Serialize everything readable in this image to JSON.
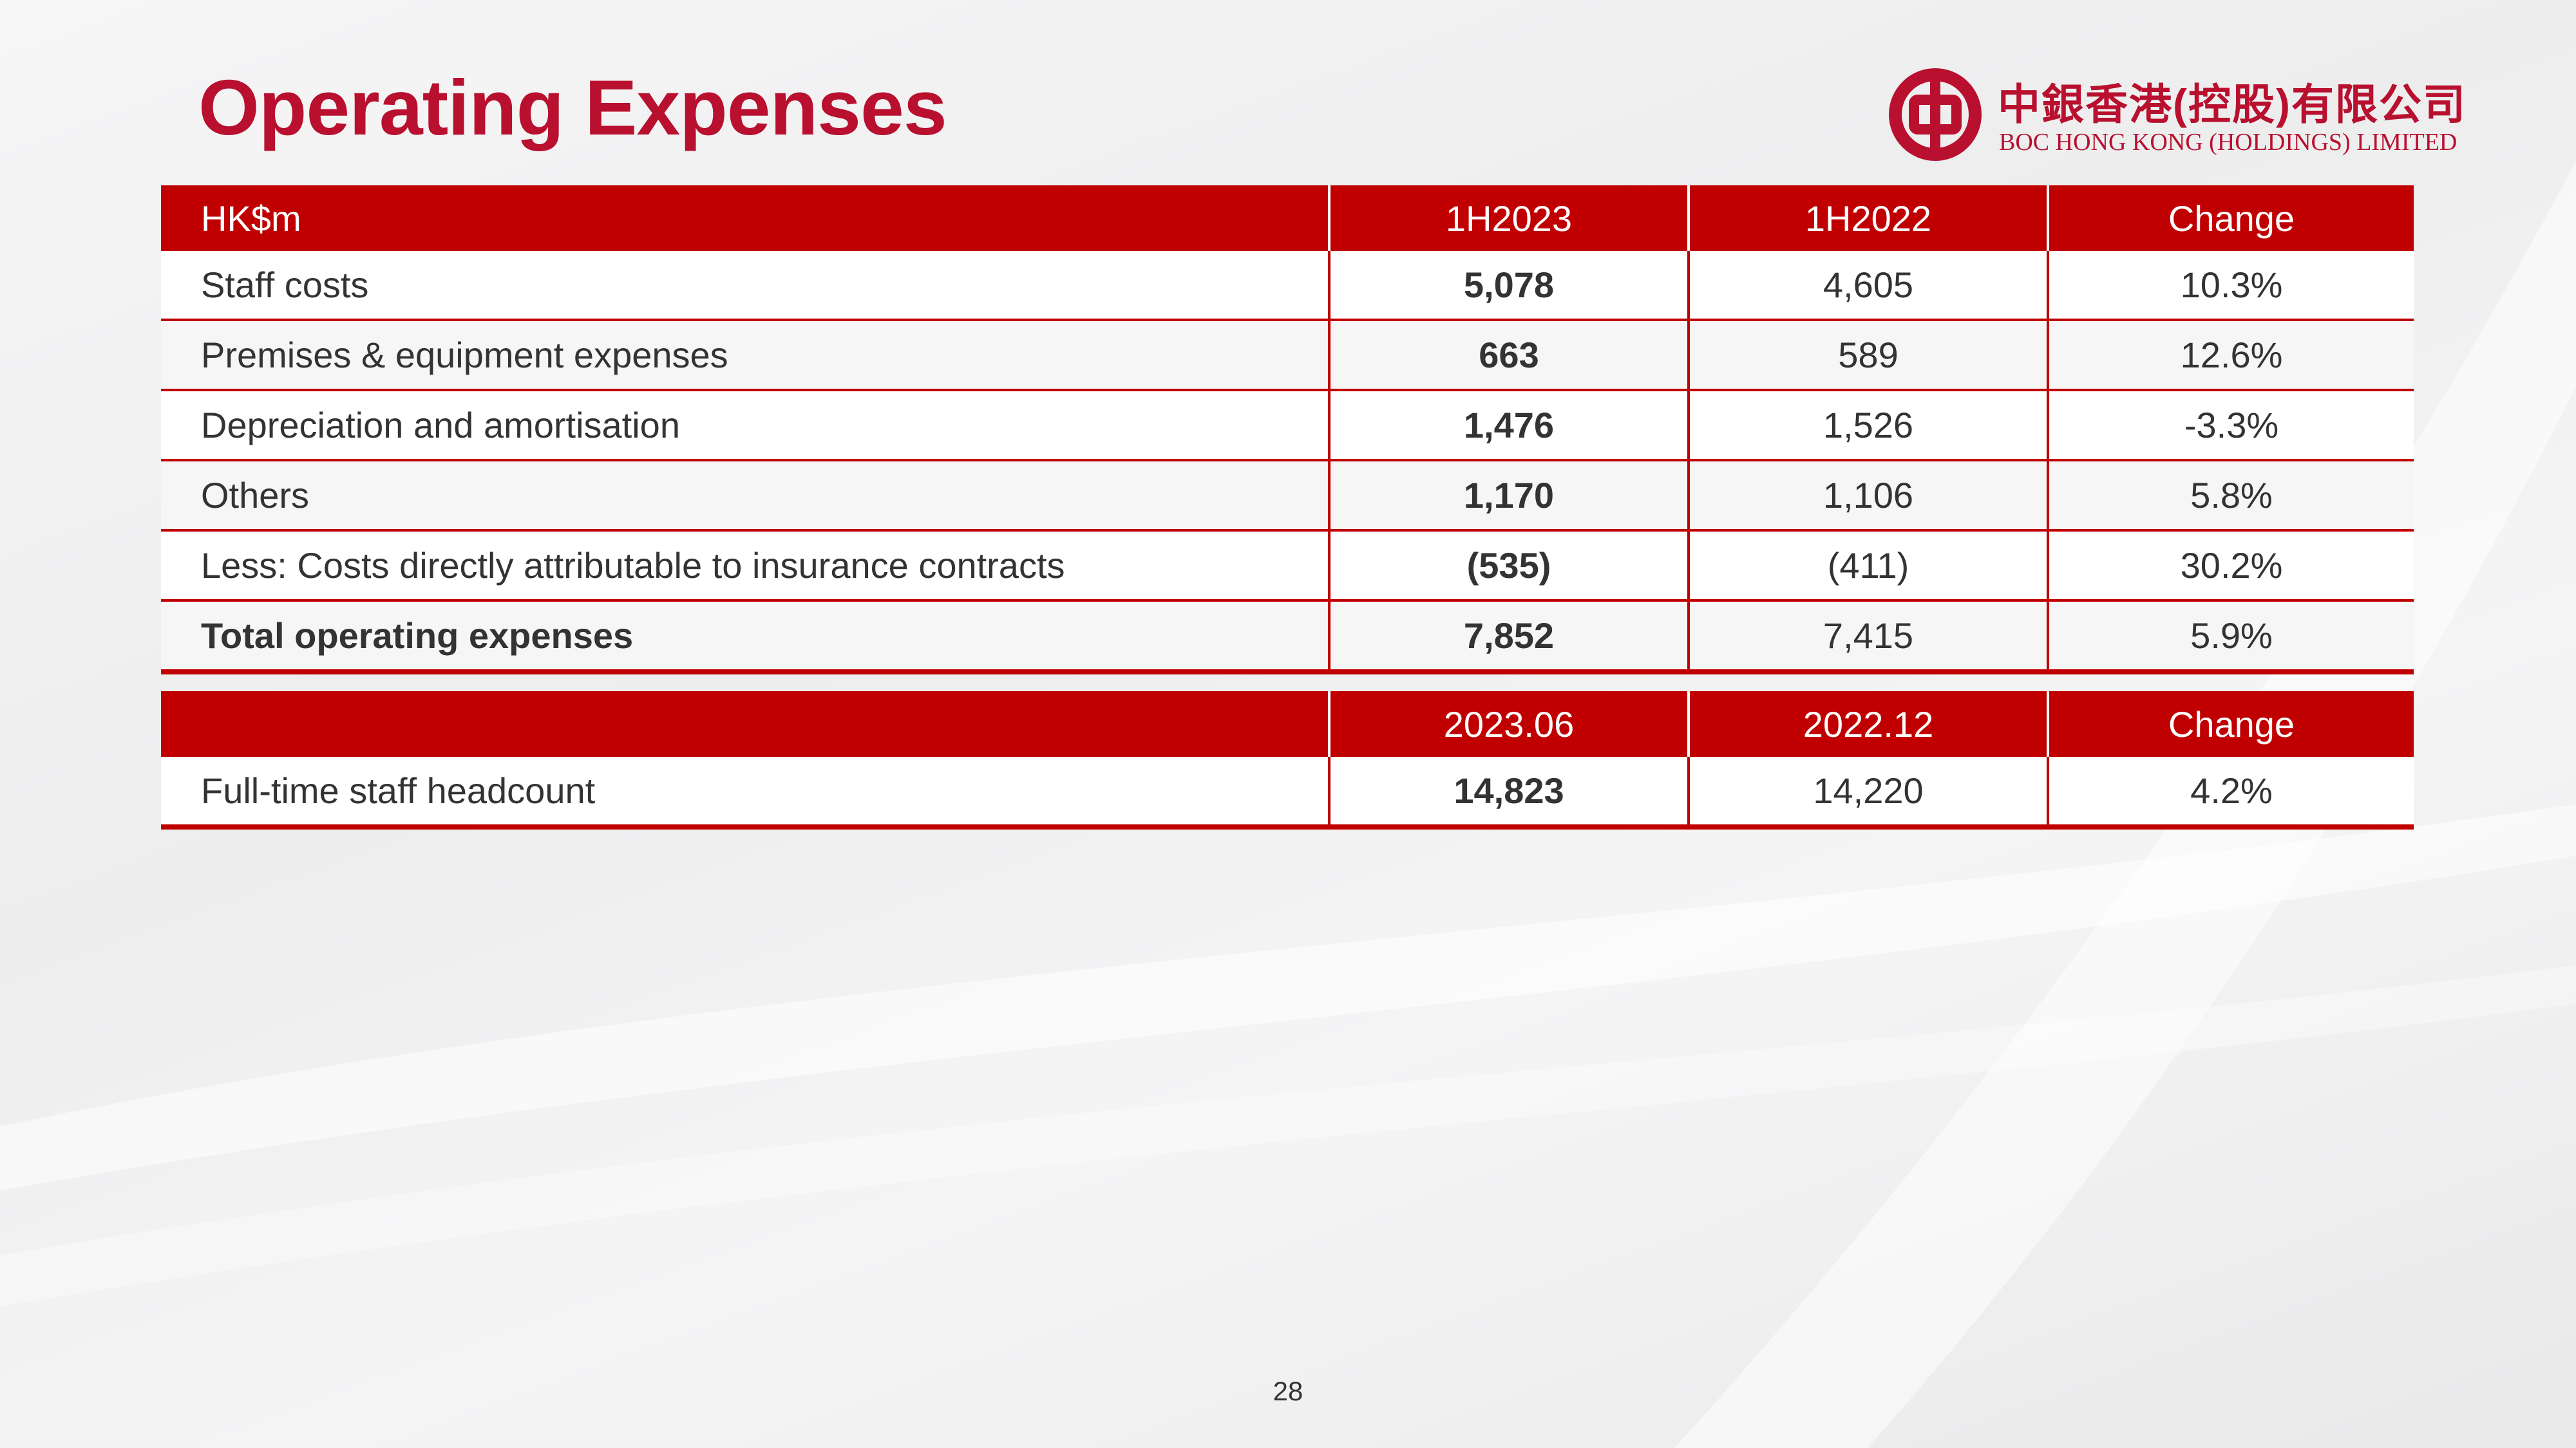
{
  "page": {
    "title": "Operating Expenses",
    "page_number": "28"
  },
  "logo": {
    "chinese_name": "中銀香港(控股)有限公司",
    "english_name": "BOC HONG KONG (HOLDINGS) LIMITED"
  },
  "colors": {
    "brand_red": "#c00000",
    "title_red": "#b8102e"
  },
  "expenses_table": {
    "headers": [
      "HK$m",
      "1H2023",
      "1H2022",
      "Change"
    ],
    "rows": [
      {
        "label": "Staff costs",
        "h1_2023": "5,078",
        "h1_2022": "4,605",
        "change": "10.3%"
      },
      {
        "label": "Premises & equipment expenses",
        "h1_2023": "663",
        "h1_2022": "589",
        "change": "12.6%"
      },
      {
        "label": "Depreciation and amortisation",
        "h1_2023": "1,476",
        "h1_2022": "1,526",
        "change": "-3.3%"
      },
      {
        "label": "Others",
        "h1_2023": "1,170",
        "h1_2022": "1,106",
        "change": "5.8%"
      },
      {
        "label": "Less: Costs directly attributable to insurance contracts",
        "h1_2023": "(535)",
        "h1_2022": "(411)",
        "change": "30.2%"
      },
      {
        "label": "Total operating expenses",
        "h1_2023": "7,852",
        "h1_2022": "7,415",
        "change": "5.9%"
      }
    ]
  },
  "headcount_table": {
    "headers": [
      "",
      "2023.06",
      "2022.12",
      "Change"
    ],
    "rows": [
      {
        "label": "Full-time staff headcount",
        "jun_2023": "14,823",
        "dec_2022": "14,220",
        "change": "4.2%"
      }
    ]
  }
}
